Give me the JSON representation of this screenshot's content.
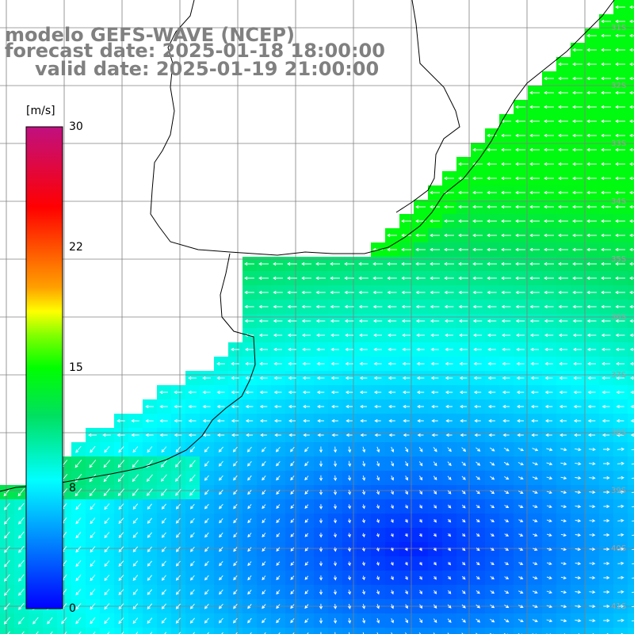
{
  "titles": {
    "line1": "modelo GEFS-WAVE (NCEP)",
    "line2": "forecast date: 2025-01-18 18:00:00",
    "line3": "valid date: 2025-01-19 21:00:00"
  },
  "colorbar": {
    "unit": "[m/s]",
    "min": 0,
    "max": 30,
    "ticks": [
      "30",
      "22",
      "15",
      "8",
      "0"
    ],
    "tick_values": [
      30,
      22,
      15,
      8,
      0
    ],
    "stops": [
      {
        "v": 0,
        "color": "#0000ff"
      },
      {
        "v": 4,
        "color": "#0080ff"
      },
      {
        "v": 8,
        "color": "#00ffff"
      },
      {
        "v": 12,
        "color": "#00e060"
      },
      {
        "v": 15,
        "color": "#00ff00"
      },
      {
        "v": 17,
        "color": "#80ff00"
      },
      {
        "v": 18.5,
        "color": "#ffff00"
      },
      {
        "v": 20,
        "color": "#ffa000"
      },
      {
        "v": 22,
        "color": "#ff6000"
      },
      {
        "v": 25,
        "color": "#ff0000"
      },
      {
        "v": 30,
        "color": "#c01080"
      }
    ]
  },
  "latitude_labels": [
    "31S",
    "32S",
    "33S",
    "34S",
    "35S",
    "36S",
    "37S",
    "38S",
    "39S",
    "40S",
    "41S"
  ],
  "colors": {
    "land": "#ffffff",
    "coast": "#000000",
    "grid": "#808080",
    "arrows": "#ffffff",
    "title": "#808080"
  }
}
